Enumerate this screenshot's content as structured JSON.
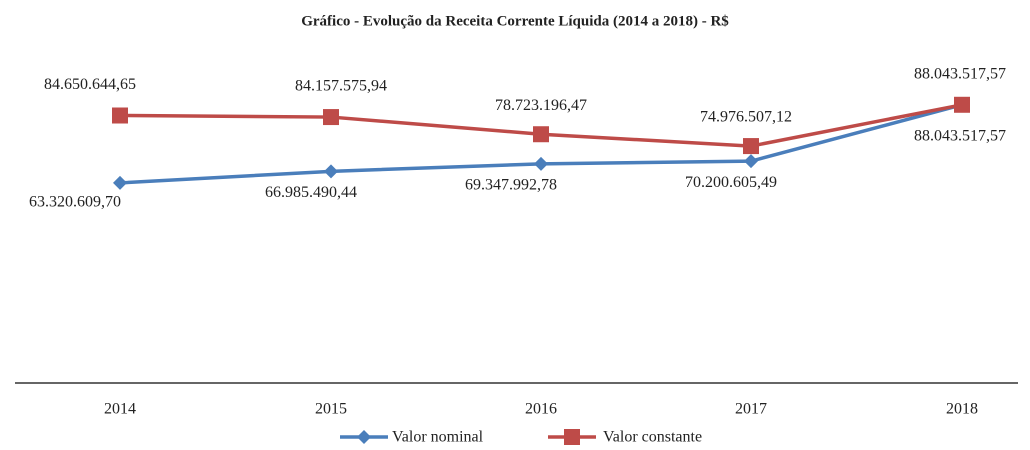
{
  "chart_data": {
    "type": "line",
    "title": "Gráfico - Evolução da Receita Corrente Líquida (2014 a 2018) - R$",
    "categories": [
      "2014",
      "2015",
      "2016",
      "2017",
      "2018"
    ],
    "series": [
      {
        "name": "Valor nominal",
        "color": "#4a7ebb",
        "marker": "diamond",
        "values": [
          63320609.7,
          66985490.44,
          69347992.78,
          70200605.49,
          88043517.57
        ],
        "value_labels": [
          "63.320.609,70",
          "66.985.490,44",
          "69.347.992,78",
          "70.200.605,49",
          "88.043.517,57"
        ]
      },
      {
        "name": "Valor constante",
        "color": "#be4b48",
        "marker": "square",
        "values": [
          84650644.65,
          84157575.94,
          78723196.47,
          74976507.12,
          88043517.57
        ],
        "value_labels": [
          "84.650.644,65",
          "84.157.575,94",
          "78.723.196,47",
          "74.976.507,12",
          "88.043.517,57"
        ]
      }
    ],
    "ylim": [
      0,
      100000000
    ]
  }
}
